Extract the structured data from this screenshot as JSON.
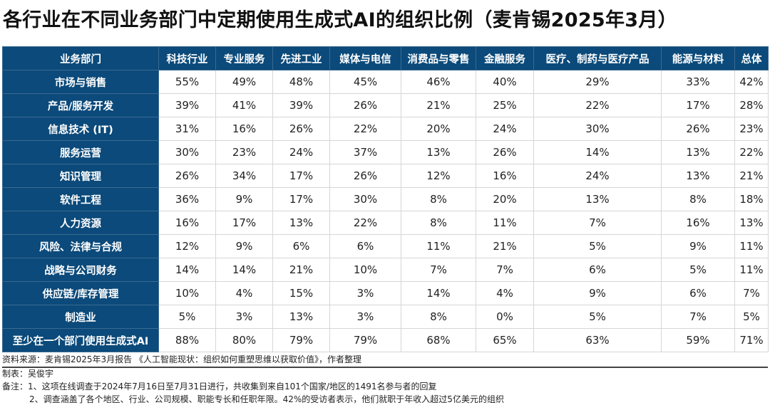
{
  "title": "各行业在不同业务部门中定期使用生成式AI的组织比例（麦肯锡2025年3月）",
  "colors": {
    "header_bg": "#0b4a7a",
    "header_text": "#ffffff",
    "grid": "#d6d6d6"
  },
  "chart_data": {
    "type": "table",
    "title": "各行业在不同业务部门中定期使用生成式AI的组织比例（麦肯锡2025年3月）",
    "columns": [
      "业务部门",
      "科技行业",
      "专业服务",
      "先进工业",
      "媒体与电信",
      "消费品与零售",
      "金融服务",
      "医疗、制药与医疗产品",
      "能源与材料",
      "总体"
    ],
    "rows": [
      {
        "label": "市场与销售",
        "values": [
          "55%",
          "49%",
          "48%",
          "45%",
          "46%",
          "40%",
          "29%",
          "33%",
          "42%"
        ]
      },
      {
        "label": "产品/服务开发",
        "values": [
          "39%",
          "41%",
          "39%",
          "26%",
          "21%",
          "25%",
          "22%",
          "17%",
          "28%"
        ]
      },
      {
        "label": "信息技术 (IT)",
        "values": [
          "31%",
          "16%",
          "26%",
          "22%",
          "20%",
          "24%",
          "30%",
          "26%",
          "23%"
        ]
      },
      {
        "label": "服务运营",
        "values": [
          "30%",
          "23%",
          "24%",
          "37%",
          "13%",
          "26%",
          "14%",
          "13%",
          "22%"
        ]
      },
      {
        "label": "知识管理",
        "values": [
          "26%",
          "34%",
          "17%",
          "26%",
          "12%",
          "16%",
          "24%",
          "13%",
          "21%"
        ]
      },
      {
        "label": "软件工程",
        "values": [
          "36%",
          "9%",
          "17%",
          "30%",
          "8%",
          "20%",
          "13%",
          "8%",
          "18%"
        ]
      },
      {
        "label": "人力资源",
        "values": [
          "16%",
          "17%",
          "13%",
          "22%",
          "8%",
          "11%",
          "7%",
          "16%",
          "13%"
        ]
      },
      {
        "label": "风险、法律与合规",
        "values": [
          "12%",
          "9%",
          "6%",
          "6%",
          "11%",
          "21%",
          "5%",
          "9%",
          "11%"
        ]
      },
      {
        "label": "战略与公司财务",
        "values": [
          "14%",
          "14%",
          "21%",
          "10%",
          "7%",
          "7%",
          "6%",
          "5%",
          "11%"
        ]
      },
      {
        "label": "供应链/库存管理",
        "values": [
          "10%",
          "4%",
          "15%",
          "3%",
          "14%",
          "4%",
          "9%",
          "6%",
          "7%"
        ]
      },
      {
        "label": "制造业",
        "values": [
          "5%",
          "3%",
          "13%",
          "3%",
          "8%",
          "0%",
          "5%",
          "7%",
          "5%"
        ]
      },
      {
        "label": "至少在一个部门使用生成式AI",
        "values": [
          "88%",
          "80%",
          "79%",
          "79%",
          "68%",
          "65%",
          "63%",
          "59%",
          "71%"
        ]
      }
    ]
  },
  "footer": {
    "source": "资料来源：麦肯锡2025年3月报告 《人工智能现状：组织如何重塑思维以获取价值》，作者整理",
    "maker": "制表：吴俊宇",
    "note1": "备注：1、这项在线调查于2024年7月16日至7月31日进行，共收集到来自101个国家/地区的1491名参与者的回复",
    "note2": "2、调查涵盖了各个地区、行业、公司规模、职能专长和任职年限。42%的受访者表示，他们就职于年收入超过5亿美元的组织"
  }
}
